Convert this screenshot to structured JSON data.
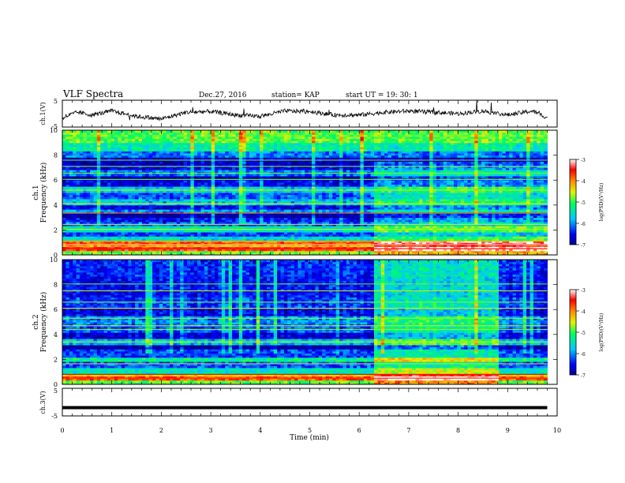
{
  "header": {
    "title": "VLF Spectra",
    "date": "Dec.27, 2016",
    "station": "station= KAP",
    "start": "start  UT =   19: 30: 1"
  },
  "chart_data": [
    {
      "type": "line",
      "panel": "ch1-waveform",
      "ylabel": "ch.1(V)",
      "yticks": [
        "5",
        "-5"
      ],
      "ylim": [
        -5,
        5
      ],
      "xlim": [
        0,
        10
      ],
      "values_note": "noisy waveform, amplitude approx 0 to 2 V, baseline near -1 V",
      "trend": [
        [
          0.0,
          -1.5
        ],
        [
          0.3,
          0.5
        ],
        [
          0.6,
          -0.5
        ],
        [
          1.0,
          1.0
        ],
        [
          1.5,
          -1.0
        ],
        [
          2.0,
          -2.0
        ],
        [
          2.5,
          0.5
        ],
        [
          3.0,
          0.8
        ],
        [
          3.5,
          -0.5
        ],
        [
          4.0,
          -1.0
        ],
        [
          4.5,
          1.0
        ],
        [
          5.0,
          0.8
        ],
        [
          5.5,
          -0.5
        ],
        [
          6.0,
          -0.5
        ],
        [
          6.5,
          0.5
        ],
        [
          7.0,
          1.0
        ],
        [
          7.5,
          0.5
        ],
        [
          8.0,
          0.0
        ],
        [
          8.5,
          1.0
        ],
        [
          9.0,
          -0.5
        ],
        [
          9.5,
          1.0
        ],
        [
          9.8,
          -1.5
        ]
      ]
    },
    {
      "type": "heatmap",
      "panel": "ch1-spectrogram",
      "ylabel": "Frequency (kHz)",
      "channel_label": "ch.1",
      "yticks": [
        "0",
        "2",
        "4",
        "6",
        "8",
        "10"
      ],
      "ylim": [
        0,
        10
      ],
      "xlim": [
        0,
        9.8
      ],
      "colorbar": {
        "label": "log(PSD)(V²/Hz)",
        "ticks": [
          "-3",
          "-4",
          "-5",
          "-6",
          "-7"
        ],
        "range": [
          -7,
          -3
        ]
      },
      "bands": [
        [
          0.0,
          0.3,
          -4.8
        ],
        [
          0.3,
          0.6,
          -3.6
        ],
        [
          0.6,
          0.9,
          -4.2
        ],
        [
          0.9,
          1.2,
          -3.8
        ],
        [
          1.2,
          1.5,
          -5.6
        ],
        [
          1.5,
          1.9,
          -6.3
        ],
        [
          1.9,
          2.3,
          -5.5
        ],
        [
          2.3,
          2.7,
          -6.2
        ],
        [
          2.7,
          3.0,
          -6.5
        ],
        [
          3.0,
          3.3,
          -7.0
        ],
        [
          3.3,
          3.6,
          -6.0
        ],
        [
          3.6,
          4.0,
          -6.6
        ],
        [
          4.0,
          4.5,
          -5.8
        ],
        [
          4.5,
          5.0,
          -6.2
        ],
        [
          5.0,
          5.5,
          -5.7
        ],
        [
          5.5,
          6.0,
          -6.6
        ],
        [
          6.0,
          6.4,
          -6.9
        ],
        [
          6.4,
          6.8,
          -6.1
        ],
        [
          6.8,
          7.2,
          -6.6
        ],
        [
          7.2,
          7.8,
          -6.8
        ],
        [
          7.8,
          8.4,
          -6.1
        ],
        [
          8.4,
          9.0,
          -5.4
        ],
        [
          9.0,
          10.0,
          -4.9
        ]
      ],
      "lines": [
        [
          0.5,
          -3.5
        ],
        [
          0.85,
          -3.2
        ],
        [
          1.1,
          -4.3
        ],
        [
          2.05,
          -4.6
        ],
        [
          2.45,
          -4.5
        ],
        [
          3.35,
          -3.7
        ],
        [
          4.1,
          -4.5
        ],
        [
          5.2,
          -4.6
        ],
        [
          6.05,
          -4.8
        ],
        [
          6.55,
          -4.8
        ],
        [
          7.1,
          -4.7
        ],
        [
          7.6,
          -4.8
        ]
      ],
      "regions": [
        {
          "t0": 6.3,
          "t1": 9.8,
          "f0": 0,
          "f1": 7.5,
          "offset": 0.6
        }
      ]
    },
    {
      "type": "heatmap",
      "panel": "ch2-spectrogram",
      "ylabel": "Frequency (kHz)",
      "channel_label": "ch.2",
      "yticks": [
        "0",
        "2",
        "4",
        "6",
        "8",
        "10"
      ],
      "ylim": [
        0,
        10
      ],
      "xlim": [
        0,
        9.8
      ],
      "colorbar": {
        "label": "log(PSD)(V²/Hz)",
        "ticks": [
          "-3",
          "-4",
          "-5",
          "-6",
          "-7"
        ],
        "range": [
          -7,
          -3
        ]
      },
      "bands": [
        [
          0.0,
          0.3,
          -4.9
        ],
        [
          0.3,
          0.6,
          -3.8
        ],
        [
          0.6,
          0.9,
          -4.4
        ],
        [
          0.9,
          1.3,
          -5.5
        ],
        [
          1.3,
          1.8,
          -6.2
        ],
        [
          1.8,
          2.2,
          -5.3
        ],
        [
          2.2,
          2.8,
          -6.3
        ],
        [
          2.8,
          3.2,
          -7.0
        ],
        [
          3.2,
          3.6,
          -5.8
        ],
        [
          3.6,
          4.2,
          -6.7
        ],
        [
          4.2,
          4.8,
          -6.2
        ],
        [
          4.8,
          5.5,
          -6.0
        ],
        [
          5.5,
          6.2,
          -6.6
        ],
        [
          6.2,
          7.0,
          -6.3
        ],
        [
          7.0,
          7.6,
          -6.5
        ],
        [
          7.6,
          8.6,
          -6.5
        ],
        [
          8.6,
          10.0,
          -6.4
        ]
      ],
      "lines": [
        [
          0.5,
          -3.6
        ],
        [
          0.8,
          -3.5
        ],
        [
          1.65,
          -4.4
        ],
        [
          3.4,
          -4.6
        ],
        [
          4.4,
          -4.7
        ],
        [
          4.7,
          -4.6
        ],
        [
          5.3,
          -4.7
        ],
        [
          6.1,
          -4.5
        ],
        [
          6.6,
          -4.8
        ],
        [
          7.5,
          -4.6
        ],
        [
          8.05,
          -4.8
        ]
      ],
      "regions": [
        {
          "t0": 6.3,
          "t1": 8.8,
          "f0": 0,
          "f1": 10,
          "offset": 0.9
        }
      ]
    },
    {
      "type": "line",
      "panel": "ch3-waveform",
      "ylabel": "ch.3(V)",
      "yticks": [
        "5",
        "-5"
      ],
      "ylim": [
        -5,
        5
      ],
      "xlim": [
        0,
        10
      ],
      "x": [
        0,
        9.8
      ],
      "y": [
        -2,
        -2
      ],
      "xlabel": "Time (min)",
      "xticks": [
        "0",
        "1",
        "2",
        "3",
        "4",
        "5",
        "6",
        "7",
        "8",
        "9",
        "10"
      ]
    }
  ]
}
